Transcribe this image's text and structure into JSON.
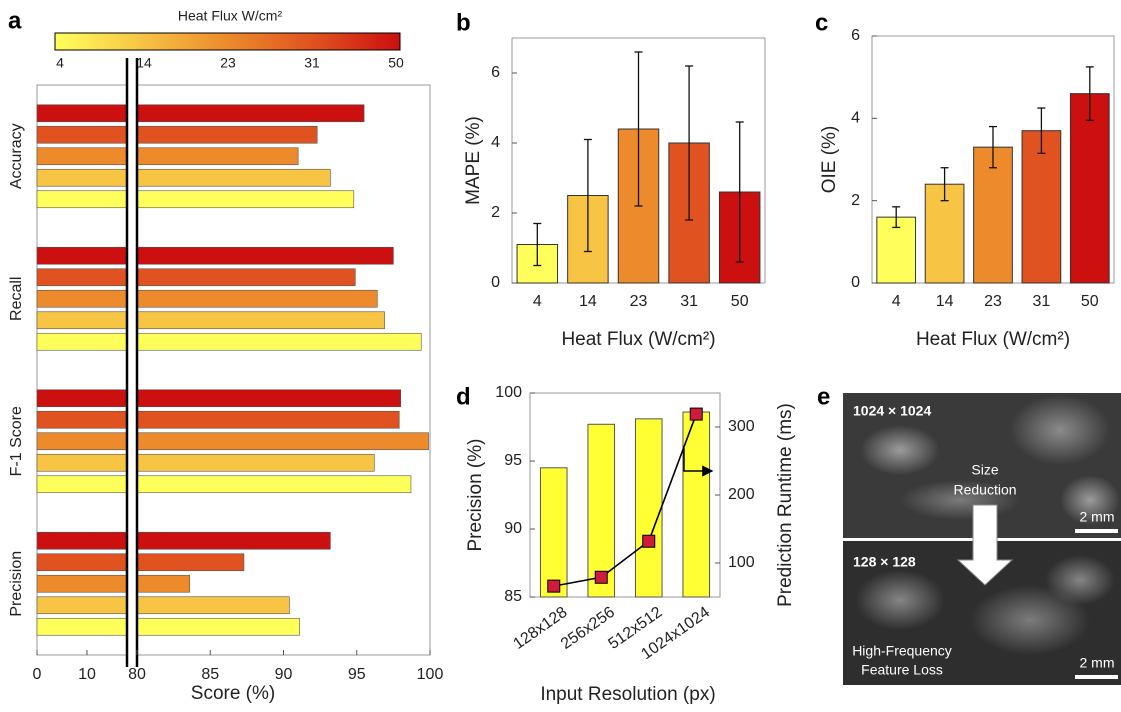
{
  "chart_data": [
    {
      "panel": "a",
      "type": "hbar",
      "colorbar_label": "Heat Flux W/cm²",
      "categories": [
        "Accuracy",
        "Recall",
        "F-1 Score",
        "Precision"
      ],
      "series": [
        {
          "name": "4",
          "color": "#ffff5c",
          "values": [
            94.8,
            99.4,
            98.7,
            91.1
          ]
        },
        {
          "name": "14",
          "color": "#f7c444",
          "values": [
            93.2,
            96.9,
            96.2,
            90.4
          ]
        },
        {
          "name": "23",
          "color": "#ec8a2c",
          "values": [
            91.0,
            96.4,
            99.9,
            83.6
          ]
        },
        {
          "name": "31",
          "color": "#e0521f",
          "values": [
            92.3,
            94.9,
            97.9,
            87.3
          ]
        },
        {
          "name": "50",
          "color": "#cc0f0f",
          "values": [
            95.5,
            97.5,
            98.0,
            93.2
          ]
        }
      ],
      "xlim": [
        0,
        100
      ],
      "axis_break": [
        18,
        80
      ],
      "xticks": [
        0,
        10,
        80,
        85,
        90,
        95,
        100
      ],
      "xlabel": "Score (%)"
    },
    {
      "panel": "b",
      "type": "bar",
      "categories": [
        "4",
        "14",
        "23",
        "31",
        "50"
      ],
      "colors": [
        "#ffff5c",
        "#f7c444",
        "#ec8a2c",
        "#e0521f",
        "#cc0f0f"
      ],
      "values": [
        1.1,
        2.5,
        4.4,
        4.0,
        2.6
      ],
      "errors": [
        0.6,
        1.6,
        2.2,
        2.2,
        2.0
      ],
      "ylim": [
        0,
        7
      ],
      "yticks": [
        0,
        2,
        4,
        6
      ],
      "xlabel": "Heat Flux (W/cm²)",
      "ylabel": "MAPE (%)"
    },
    {
      "panel": "c",
      "type": "bar",
      "categories": [
        "4",
        "14",
        "23",
        "31",
        "50"
      ],
      "colors": [
        "#ffff5c",
        "#f7c444",
        "#ec8a2c",
        "#e0521f",
        "#cc0f0f"
      ],
      "values": [
        1.6,
        2.4,
        3.3,
        3.7,
        4.6
      ],
      "errors": [
        0.25,
        0.4,
        0.5,
        0.55,
        0.65
      ],
      "ylim": [
        0,
        6
      ],
      "yticks": [
        0,
        2,
        4,
        6
      ],
      "xlabel": "Heat Flux (W/cm²)",
      "ylabel": "OIE (%)"
    },
    {
      "panel": "d",
      "type": "bar_line",
      "categories": [
        "128x128",
        "256x256",
        "512x512",
        "1024x1024"
      ],
      "series": [
        {
          "color": "#ffff33",
          "values": [
            94.5,
            97.7,
            98.1,
            98.6
          ]
        },
        {
          "color": "#d01c3c",
          "axis": "y2",
          "values": [
            66,
            79,
            132,
            319
          ]
        }
      ],
      "ylim": [
        85,
        100
      ],
      "yticks": [
        85,
        90,
        95,
        100
      ],
      "y2lim": [
        50,
        350
      ],
      "y2ticks": [
        100,
        200,
        300
      ],
      "xlabel": "Input Resolution (px)",
      "ylabel": "Precision (%)",
      "y2label": "Prediction Runtime (ms)"
    }
  ],
  "image_panel": {
    "panel": "e",
    "top": {
      "resolution": "1024 × 1024",
      "caption": [
        "Size",
        "Reduction"
      ],
      "scale": "2 mm"
    },
    "bottom": {
      "resolution": "128 × 128",
      "caption": [
        "High-Frequency",
        "Feature Loss"
      ],
      "scale": "2 mm"
    }
  }
}
